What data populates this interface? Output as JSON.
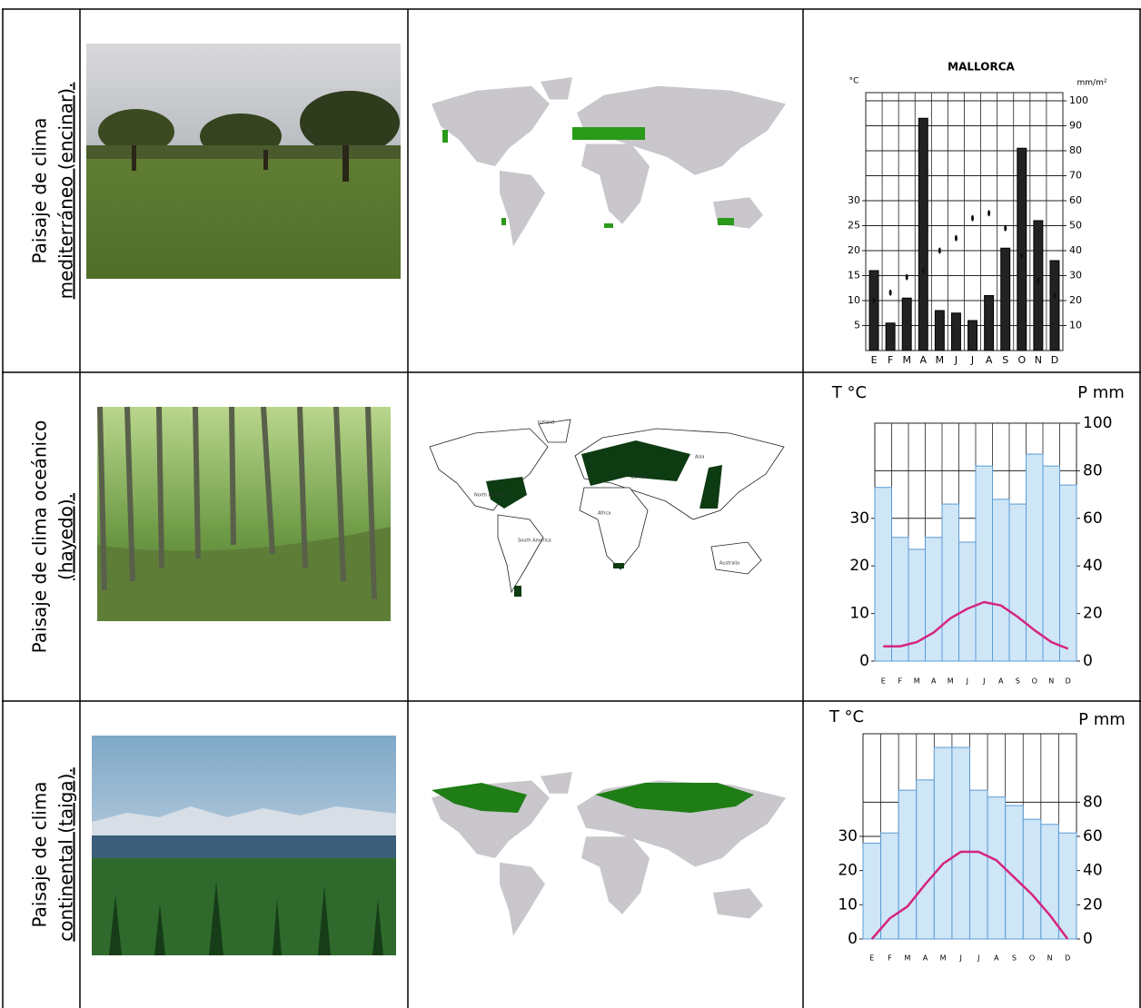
{
  "table": {
    "rows": [
      {
        "label": [
          "Paisaje de clima",
          "mediterráneo (encinar)."
        ],
        "chart": {
          "type": "bar",
          "title": "MALLORCA",
          "y_label": "°C",
          "y2_label": "mm/m²",
          "categories": [
            "E",
            "F",
            "M",
            "A",
            "M",
            "J",
            "J",
            "A",
            "S",
            "O",
            "N",
            "D"
          ],
          "ylim": [
            0,
            50
          ],
          "yticks": [
            5,
            10,
            15,
            20,
            25,
            30
          ],
          "y2lim": [
            0,
            100
          ],
          "y2ticks": [
            10,
            20,
            30,
            40,
            50,
            60,
            70,
            80,
            90,
            100
          ],
          "series": [
            {
              "type": "bar",
              "axis": "y2",
              "color": "#222222",
              "values": [
                32,
                11,
                21,
                93,
                16,
                15,
                12,
                22,
                41,
                81,
                52,
                36
              ]
            },
            {
              "type": "scatter",
              "axis": "y",
              "color": "#111111",
              "values": [
                10,
                11.6,
                14.7,
                16,
                20,
                22.5,
                26.5,
                27.5,
                24.5,
                19,
                14,
                11
              ]
            }
          ]
        }
      },
      {
        "label": [
          "Paisaje de clima oceánico",
          "(hayedo)."
        ],
        "map_labels": [
          "Iceland",
          "North America",
          "Europe",
          "Asia",
          "Africa",
          "South America",
          "Australia"
        ],
        "chart": {
          "type": "bar",
          "y_label": "T °C",
          "y2_label": "P mm",
          "categories": [
            "E",
            "F",
            "M",
            "A",
            "M",
            "J",
            "J",
            "A",
            "S",
            "O",
            "N",
            "D"
          ],
          "ylim": [
            0,
            50
          ],
          "yticks": [
            0,
            10,
            20,
            30
          ],
          "y2lim": [
            0,
            100
          ],
          "y2ticks": [
            0,
            20,
            40,
            60,
            80,
            100
          ],
          "series": [
            {
              "type": "bar",
              "axis": "y2",
              "color": "#cfe6f7",
              "values": [
                73,
                52,
                47,
                52,
                66,
                50,
                82,
                68,
                66,
                87,
                82,
                74
              ]
            },
            {
              "type": "line",
              "axis": "y",
              "color": "#d6247e",
              "values": [
                3.1,
                3.1,
                4,
                6,
                9,
                11,
                12.4,
                11.7,
                9.3,
                6.5,
                4,
                2.6
              ]
            }
          ]
        }
      },
      {
        "label": [
          "Paisaje de clima",
          "continental (taiga)."
        ],
        "chart": {
          "type": "bar",
          "y_label": "T °C",
          "y2_label": "P mm",
          "categories": [
            "E",
            "F",
            "M",
            "A",
            "M",
            "J",
            "J",
            "A",
            "S",
            "O",
            "N",
            "D"
          ],
          "ylim": [
            0,
            60
          ],
          "yticks": [
            0,
            10,
            20,
            30
          ],
          "y2lim": [
            0,
            120
          ],
          "y2ticks": [
            0,
            20,
            40,
            60,
            80
          ],
          "series": [
            {
              "type": "bar",
              "axis": "y2",
              "color": "#cfe6f7",
              "values": [
                56,
                62,
                87,
                93,
                112,
                112,
                87,
                83,
                78,
                70,
                67,
                62
              ]
            },
            {
              "type": "line",
              "axis": "y",
              "color": "#d6247e",
              "values": [
                0,
                6,
                9.5,
                16,
                22,
                25.5,
                25.5,
                23,
                18,
                13,
                7,
                0
              ]
            }
          ]
        }
      }
    ]
  }
}
